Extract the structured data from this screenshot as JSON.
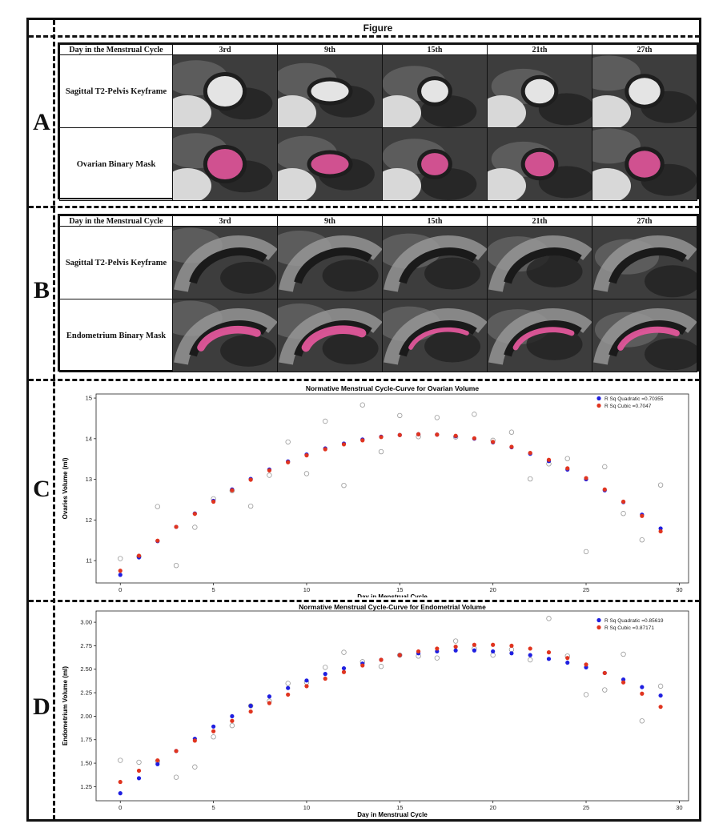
{
  "figure_title": "Figure",
  "sections": [
    "A",
    "B",
    "C",
    "D"
  ],
  "mri_tables": [
    {
      "header_label": "Day in the Menstrual Cycle",
      "days": [
        "3rd",
        "9th",
        "15th",
        "21th",
        "27th"
      ],
      "rows": [
        "Sagittal T2-Pelvis Keyframe",
        "Ovarian Binary Mask"
      ],
      "kind": "ovary"
    },
    {
      "header_label": "Day in the Menstrual Cycle",
      "days": [
        "3rd",
        "9th",
        "15th",
        "21th",
        "27th"
      ],
      "rows": [
        "Sagittal T2-Pelvis Keyframe",
        "Endometrium Binary Mask"
      ],
      "kind": "endometrium"
    }
  ],
  "colors": {
    "quadratic": "#1f1fe0",
    "cubic": "#e0341f",
    "observed": "#999999",
    "mask": "#e0569a"
  },
  "chart_data": [
    {
      "type": "scatter",
      "title": "Normative Menstrual Cycle-Curve for Ovarian Volume",
      "xlabel": "Day in Menstrual Cycle",
      "ylabel": "Ovaries Volume (ml)",
      "xlim": [
        -1.3,
        30.5
      ],
      "ylim": [
        10.45,
        15.1
      ],
      "xticks": [
        0,
        5,
        10,
        15,
        20,
        25,
        30
      ],
      "yticks": [
        11,
        12,
        13,
        14,
        15
      ],
      "legend_position": "top-right",
      "grid": false,
      "x": [
        0,
        1,
        2,
        3,
        4,
        5,
        6,
        7,
        8,
        9,
        10,
        11,
        12,
        13,
        14,
        15,
        16,
        17,
        18,
        19,
        20,
        21,
        22,
        23,
        24,
        25,
        26,
        27,
        28,
        29
      ],
      "series": [
        {
          "name": "R Sq Quadratic =0.70355",
          "color_key": "quadratic",
          "marker": "filled",
          "values": [
            10.65,
            11.08,
            11.48,
            11.83,
            12.16,
            12.47,
            12.75,
            13.01,
            13.24,
            13.44,
            13.61,
            13.76,
            13.88,
            13.98,
            14.05,
            14.09,
            14.11,
            14.1,
            14.06,
            14.0,
            13.91,
            13.79,
            13.63,
            13.45,
            13.24,
            13.0,
            12.73,
            12.44,
            12.13,
            11.79
          ]
        },
        {
          "name": "R Sq Cubic =0.7047",
          "color_key": "cubic",
          "marker": "filled",
          "values": [
            10.75,
            11.12,
            11.49,
            11.83,
            12.15,
            12.45,
            12.73,
            12.99,
            13.22,
            13.42,
            13.59,
            13.74,
            13.86,
            13.96,
            14.04,
            14.09,
            14.11,
            14.1,
            14.07,
            14.01,
            13.92,
            13.8,
            13.65,
            13.48,
            13.27,
            13.03,
            12.75,
            12.45,
            12.1,
            11.72
          ]
        },
        {
          "name": "",
          "color_key": "observed",
          "marker": "hollow",
          "values": [
            11.05,
            11.1,
            12.33,
            10.88,
            11.82,
            12.52,
            12.72,
            12.34,
            13.1,
            13.92,
            13.14,
            14.43,
            12.85,
            14.83,
            13.68,
            14.57,
            14.05,
            14.52,
            14.04,
            14.6,
            13.96,
            14.16,
            13.01,
            13.38,
            13.51,
            11.22,
            13.31,
            12.16,
            11.51,
            12.86
          ]
        }
      ]
    },
    {
      "type": "scatter",
      "title": "Normative Menstrual Cycle-Curve for Endometrial Volume",
      "xlabel": "Day in Menstrual Cycle",
      "ylabel": "Endometrium Volume (ml)",
      "xlim": [
        -1.3,
        30.5
      ],
      "ylim": [
        1.1,
        3.12
      ],
      "xticks": [
        0,
        5,
        10,
        15,
        20,
        25,
        30
      ],
      "yticks": [
        1.25,
        1.5,
        1.75,
        2.0,
        2.25,
        2.5,
        2.75,
        3.0
      ],
      "ytick_labels": [
        "1.25",
        "1.50",
        "1.75",
        "2.00",
        "2.25",
        "2.50",
        "2.75",
        "3.00"
      ],
      "legend_position": "top-right",
      "grid": false,
      "x": [
        0,
        1,
        2,
        3,
        4,
        5,
        6,
        7,
        8,
        9,
        10,
        11,
        12,
        13,
        14,
        15,
        16,
        17,
        18,
        19,
        20,
        21,
        22,
        23,
        24,
        25,
        26,
        27,
        28,
        29
      ],
      "series": [
        {
          "name": "R Sq Quadratic =0.85619",
          "color_key": "quadratic",
          "marker": "filled",
          "values": [
            1.18,
            1.34,
            1.49,
            1.63,
            1.76,
            1.89,
            2.0,
            2.11,
            2.21,
            2.3,
            2.38,
            2.45,
            2.51,
            2.56,
            2.6,
            2.65,
            2.67,
            2.69,
            2.7,
            2.7,
            2.69,
            2.67,
            2.65,
            2.61,
            2.57,
            2.52,
            2.46,
            2.39,
            2.31,
            2.22
          ]
        },
        {
          "name": "R Sq Cubic =0.87171",
          "color_key": "cubic",
          "marker": "filled",
          "values": [
            1.3,
            1.42,
            1.53,
            1.63,
            1.74,
            1.84,
            1.95,
            2.05,
            2.14,
            2.23,
            2.32,
            2.4,
            2.47,
            2.54,
            2.6,
            2.65,
            2.69,
            2.72,
            2.74,
            2.76,
            2.76,
            2.75,
            2.72,
            2.68,
            2.62,
            2.55,
            2.46,
            2.36,
            2.24,
            2.1
          ]
        },
        {
          "name": "",
          "color_key": "observed",
          "marker": "hollow",
          "values": [
            1.53,
            1.51,
            1.52,
            1.35,
            1.46,
            1.78,
            1.9,
            2.11,
            2.16,
            2.35,
            2.36,
            2.52,
            2.68,
            2.58,
            2.53,
            2.65,
            2.64,
            2.62,
            2.8,
            2.72,
            2.65,
            2.71,
            2.6,
            3.04,
            2.64,
            2.23,
            2.28,
            2.66,
            1.95,
            2.32
          ]
        }
      ]
    }
  ]
}
